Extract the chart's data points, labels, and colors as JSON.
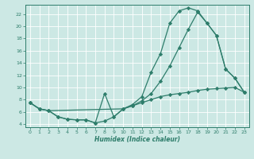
{
  "xlabel": "Humidex (Indice chaleur)",
  "bg_color": "#cce8e4",
  "grid_color": "#ffffff",
  "line_color": "#2e7d6b",
  "xlim": [
    -0.5,
    23.5
  ],
  "ylim": [
    3.5,
    23.5
  ],
  "xticks": [
    0,
    1,
    2,
    3,
    4,
    5,
    6,
    7,
    8,
    9,
    10,
    11,
    12,
    13,
    14,
    15,
    16,
    17,
    18,
    19,
    20,
    21,
    22,
    23
  ],
  "yticks": [
    4,
    6,
    8,
    10,
    12,
    14,
    16,
    18,
    20,
    22
  ],
  "line1_x": [
    0,
    1,
    2,
    3,
    4,
    5,
    6,
    7,
    8,
    9,
    10,
    11,
    12,
    13,
    14,
    15,
    16,
    17,
    18,
    19,
    20,
    21,
    22,
    23
  ],
  "line1_y": [
    7.5,
    6.5,
    6.2,
    5.2,
    4.8,
    4.7,
    4.7,
    4.2,
    9.0,
    5.2,
    6.5,
    7.2,
    8.5,
    12.5,
    15.5,
    20.5,
    22.5,
    23.0,
    22.5,
    20.5,
    18.5,
    13.0,
    11.5,
    9.2
  ],
  "line2_x": [
    0,
    1,
    2,
    10,
    11,
    12,
    13,
    14,
    15,
    16,
    17,
    18,
    19,
    20,
    21,
    22,
    23
  ],
  "line2_y": [
    7.5,
    6.5,
    6.2,
    6.5,
    7.0,
    7.8,
    9.0,
    11.0,
    13.5,
    16.5,
    19.5,
    22.3,
    20.5,
    18.5,
    13.0,
    11.5,
    9.2
  ],
  "line3_x": [
    0,
    1,
    2,
    3,
    4,
    5,
    6,
    7,
    8,
    9,
    10,
    11,
    12,
    13,
    14,
    15,
    16,
    17,
    18,
    19,
    20,
    21,
    22,
    23
  ],
  "line3_y": [
    7.5,
    6.5,
    6.2,
    5.2,
    4.8,
    4.7,
    4.7,
    4.2,
    4.5,
    5.2,
    6.5,
    7.0,
    7.5,
    8.0,
    8.5,
    8.8,
    9.0,
    9.2,
    9.5,
    9.7,
    9.8,
    9.9,
    10.0,
    9.2
  ]
}
